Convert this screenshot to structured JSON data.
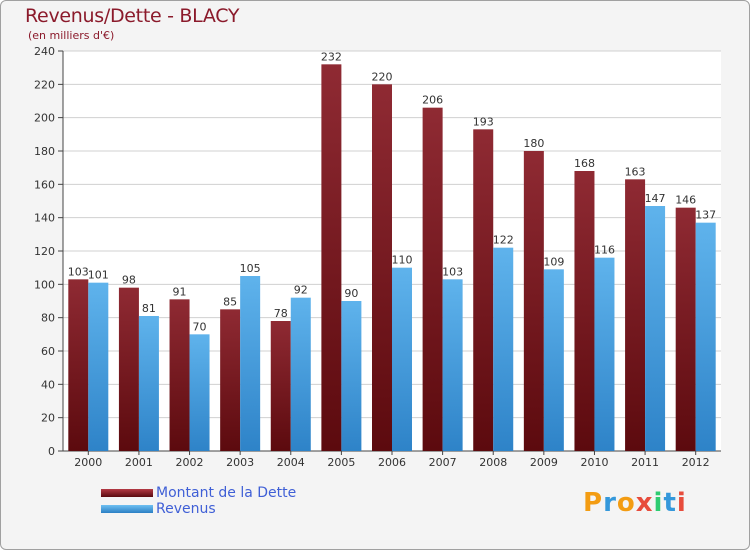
{
  "chart_data": {
    "type": "bar",
    "title": "Revenus/Dette - BLACY",
    "subtitle": "(en milliers d'€)",
    "categories": [
      "2000",
      "2001",
      "2002",
      "2003",
      "2004",
      "2005",
      "2006",
      "2007",
      "2008",
      "2009",
      "2010",
      "2011",
      "2012"
    ],
    "series": [
      {
        "name": "Montant de la Dette",
        "color": "#7a1a1f",
        "values": [
          103,
          98,
          91,
          85,
          78,
          232,
          220,
          206,
          193,
          180,
          168,
          163,
          146
        ]
      },
      {
        "name": "Revenus",
        "color": "#4a9fe0",
        "values": [
          101,
          81,
          70,
          105,
          92,
          90,
          110,
          103,
          122,
          109,
          116,
          147,
          137
        ]
      }
    ],
    "ylim": [
      0,
      240
    ],
    "yticks": [
      0,
      20,
      40,
      60,
      80,
      100,
      120,
      140,
      160,
      180,
      200,
      220,
      240
    ],
    "grid": true,
    "legend_position": "bottom-left"
  },
  "logo": {
    "letters": [
      "P",
      "r",
      "o",
      "x",
      "i",
      "t",
      "i"
    ],
    "colors": [
      "#f39c12",
      "#3498db",
      "#f39c12",
      "#e74c3c",
      "#2ecc71",
      "#3498db",
      "#e74c3c"
    ]
  }
}
